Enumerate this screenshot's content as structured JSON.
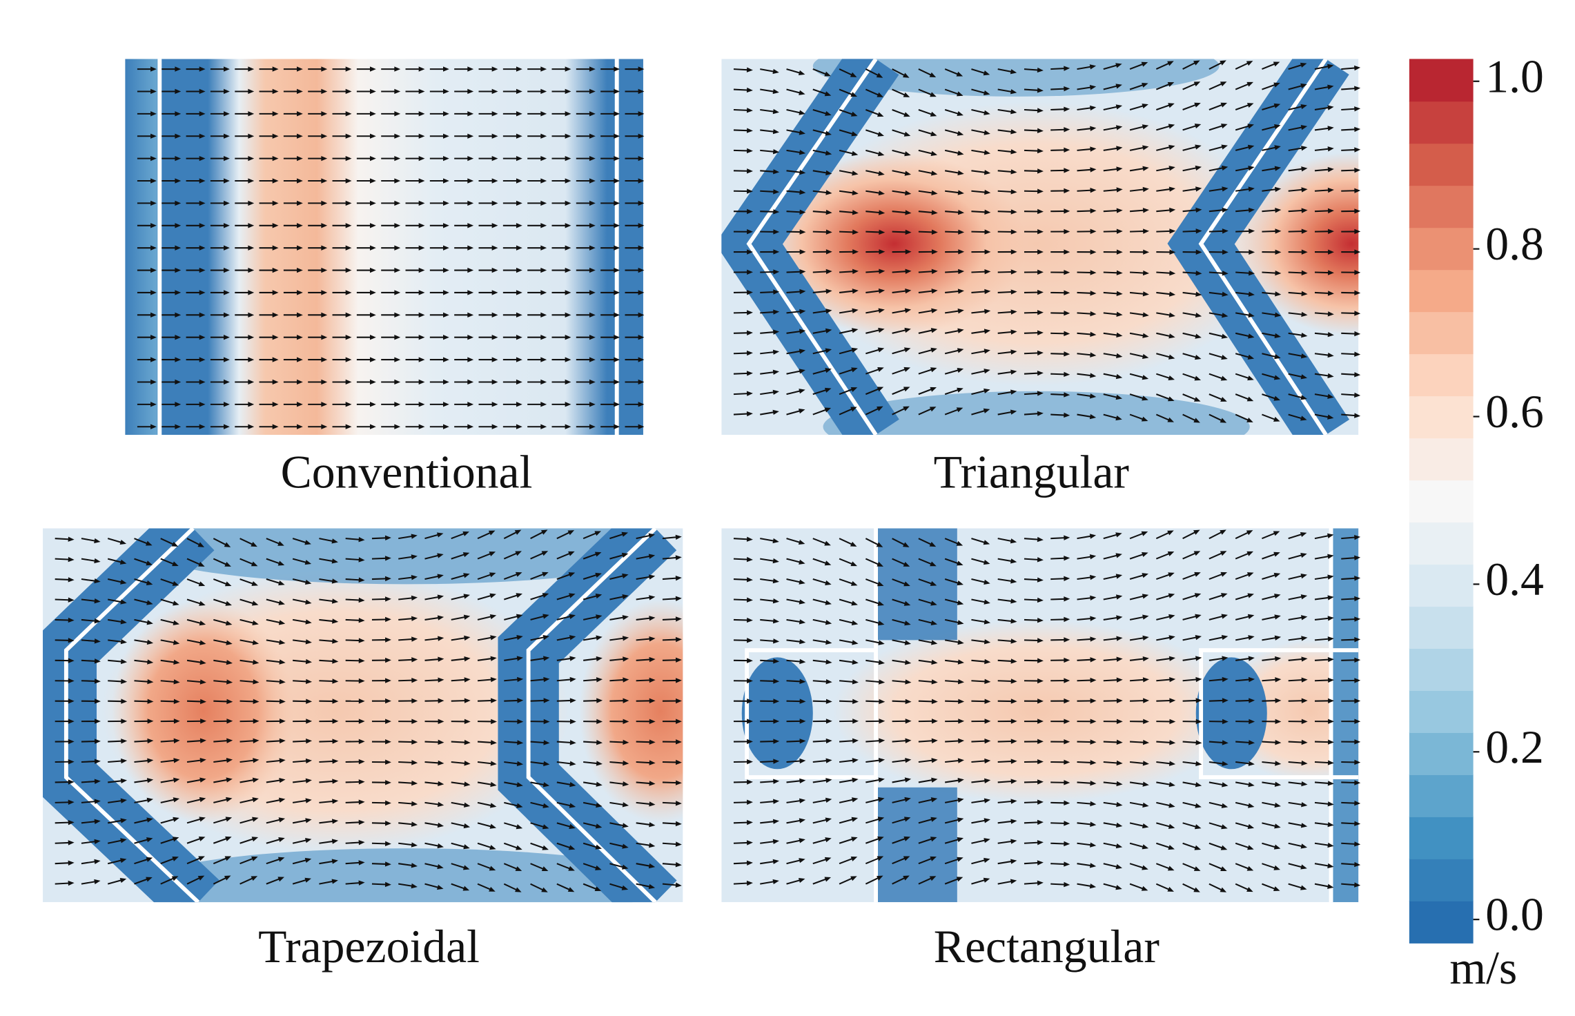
{
  "panels": [
    {
      "label": "Conventional"
    },
    {
      "label": "Triangular"
    },
    {
      "label": "Trapezoidal"
    },
    {
      "label": "Rectangular"
    }
  ],
  "colorbar": {
    "lim": [
      0,
      1
    ],
    "ticks": [
      {
        "value": 0,
        "label": "0.0"
      },
      0.2,
      0.4,
      0.6,
      0.8,
      {
        "value": 1,
        "label": "1.0"
      }
    ],
    "unit": "m/s",
    "colormap": "RdBu"
  }
}
